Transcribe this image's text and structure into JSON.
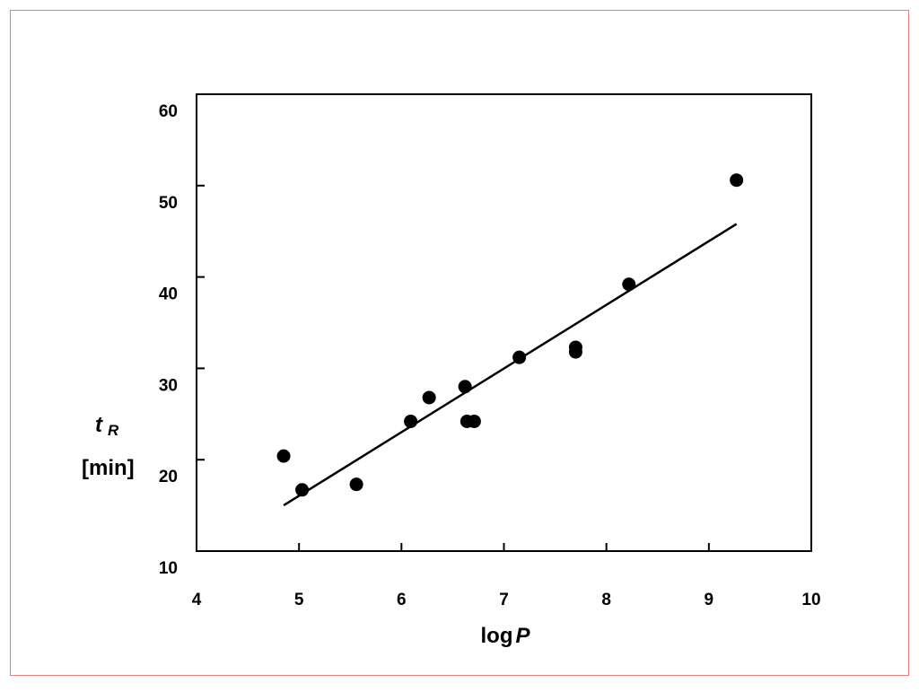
{
  "chart_data": {
    "type": "scatter",
    "xlim": [
      4,
      10
    ],
    "ylim": [
      10,
      60
    ],
    "xticks": [
      "4",
      "5",
      "6",
      "7",
      "8",
      "9",
      "10"
    ],
    "yticks": [
      "10",
      "20",
      "30",
      "40",
      "50",
      "60"
    ],
    "x_tick_values": [
      4,
      5,
      6,
      7,
      8,
      9,
      10
    ],
    "y_tick_values": [
      10,
      20,
      30,
      40,
      50,
      60
    ],
    "xlabel": {
      "main": "log",
      "italic": "P"
    },
    "ylabel": {
      "symbol": "t",
      "subscript": "R",
      "unit": "[min]"
    },
    "grid": false,
    "legend": "none",
    "series": [
      {
        "points": [
          {
            "x": 4.85,
            "y": 20.4
          },
          {
            "x": 5.03,
            "y": 16.7
          },
          {
            "x": 5.56,
            "y": 17.3
          },
          {
            "x": 6.09,
            "y": 24.2
          },
          {
            "x": 6.27,
            "y": 26.8
          },
          {
            "x": 6.62,
            "y": 28.0
          },
          {
            "x": 6.64,
            "y": 24.2
          },
          {
            "x": 6.71,
            "y": 24.2
          },
          {
            "x": 7.15,
            "y": 31.2
          },
          {
            "x": 7.7,
            "y": 31.8
          },
          {
            "x": 7.7,
            "y": 32.3
          },
          {
            "x": 8.22,
            "y": 39.2
          },
          {
            "x": 9.27,
            "y": 50.6
          }
        ],
        "color": "#000000"
      }
    ],
    "fit_line": {
      "x1": 4.85,
      "y1": 15.0,
      "x2": 9.27,
      "y2": 45.8,
      "color": "#000000"
    },
    "frame_color": "#e08080"
  }
}
